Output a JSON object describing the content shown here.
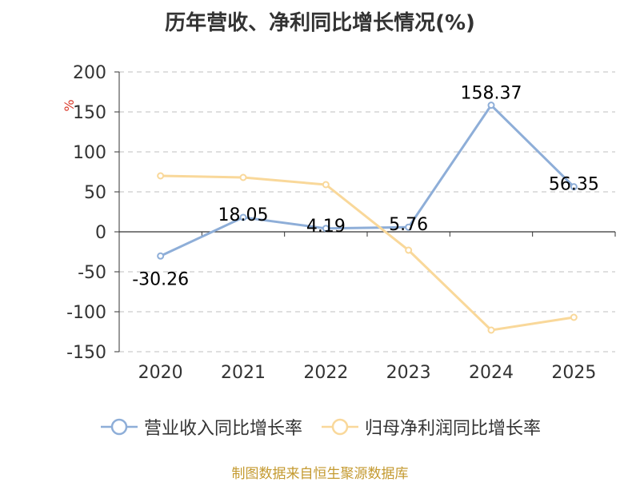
{
  "chart_data": {
    "type": "line",
    "title": "历年营收、净利同比增长情况(%)",
    "ylabel": "%",
    "xlabel": "",
    "categories": [
      "2020",
      "2021",
      "2022",
      "2023",
      "2024",
      "2025"
    ],
    "ylim": [
      -150,
      200
    ],
    "yticks": [
      200,
      150,
      100,
      50,
      0,
      -50,
      -100,
      -150
    ],
    "grid": true,
    "legend_position": "bottom",
    "series": [
      {
        "name": "营业收入同比增长率",
        "color": "#8eaed8",
        "values": [
          -30.26,
          18.05,
          4.19,
          5.76,
          158.37,
          56.35
        ],
        "labels": [
          "-30.26",
          "18.05",
          "4.19",
          "5.76",
          "158.37",
          "56.35"
        ]
      },
      {
        "name": "归母净利润同比增长率",
        "color": "#f9d89a",
        "values": [
          70,
          68,
          59,
          -23,
          -123,
          -107
        ]
      }
    ]
  },
  "source": "制图数据来自恒生聚源数据库"
}
